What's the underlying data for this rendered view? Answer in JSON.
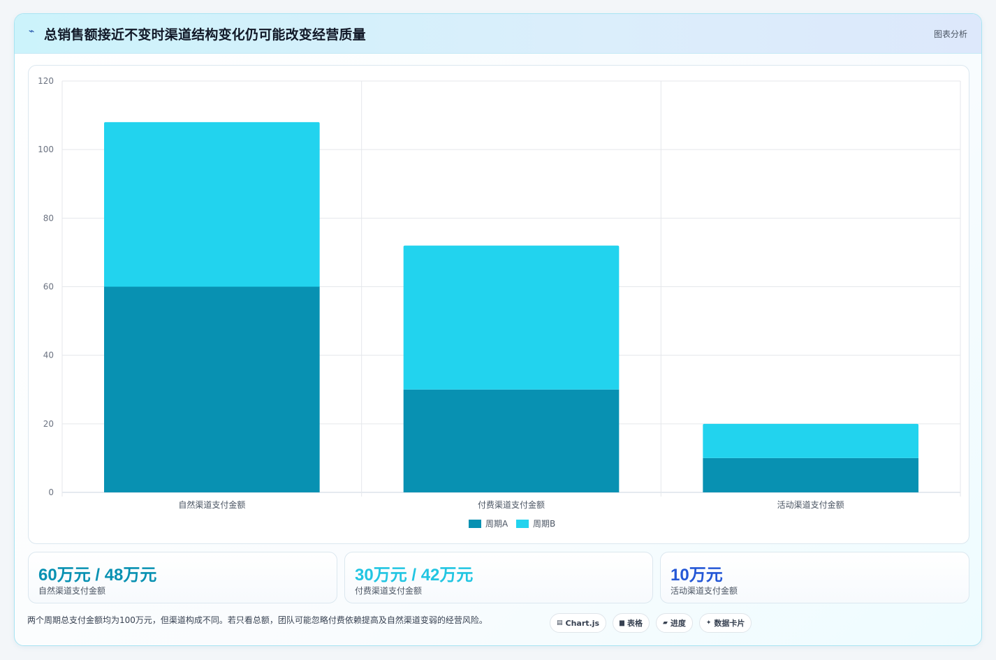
{
  "header": {
    "logo_icon": "sparkle-icon",
    "title": "总销售额接近不变时渠道结构变化仍可能改变经营质量",
    "tag": "图表分析"
  },
  "chart_data": {
    "type": "bar",
    "stacked": true,
    "categories": [
      "自然渠道支付金额",
      "付费渠道支付金额",
      "活动渠道支付金额"
    ],
    "series": [
      {
        "name": "周期A",
        "values": [
          60,
          30,
          10
        ],
        "color": "#0891b2"
      },
      {
        "name": "周期B",
        "values": [
          48,
          42,
          10
        ],
        "color": "#22d3ee"
      }
    ],
    "ylim": [
      0,
      120
    ],
    "yticks": [
      0,
      20,
      40,
      60,
      80,
      100,
      120
    ],
    "grid": true,
    "legend": "bottom"
  },
  "stats": [
    {
      "value": "60万元 / 48万元",
      "label": "自然渠道支付金额",
      "color": "#0891b2"
    },
    {
      "value": "30万元 / 42万元",
      "label": "付费渠道支付金额",
      "color": "#22c5e2"
    },
    {
      "value": "10万元",
      "label": "活动渠道支付金额",
      "color": "#2457d6"
    }
  ],
  "note": "两个周期总支付金额均为100万元，但渠道构成不同。若只看总额，团队可能忽略付费依赖提高及自然渠道变弱的经营风险。",
  "chips": [
    {
      "label": "Chart.js",
      "icon": "chart-icon",
      "glyph": "▤"
    },
    {
      "label": "表格",
      "icon": "table-icon",
      "glyph": "▆"
    },
    {
      "label": "进度",
      "icon": "progress-icon",
      "glyph": "▰"
    },
    {
      "label": "数据卡片",
      "icon": "card-icon",
      "glyph": "✦"
    }
  ]
}
